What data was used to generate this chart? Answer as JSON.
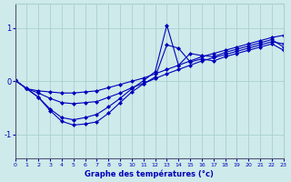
{
  "xlabel": "Graphe des températures (°c)",
  "bg_color": "#ceeaea",
  "grid_color": "#aacfcf",
  "line_color": "#0000bb",
  "x_min": 0,
  "x_max": 23,
  "y_min": -1.45,
  "y_max": 1.45,
  "yticks": [
    -1,
    0,
    1
  ],
  "xticks": [
    0,
    1,
    2,
    3,
    4,
    5,
    6,
    7,
    8,
    9,
    10,
    11,
    12,
    13,
    14,
    15,
    16,
    17,
    18,
    19,
    20,
    21,
    22,
    23
  ],
  "s1_x": [
    0,
    1,
    2,
    3,
    4,
    5,
    6,
    7,
    8,
    9,
    10,
    11,
    12,
    13,
    14,
    15,
    16,
    17,
    18,
    19,
    20,
    21,
    22,
    23
  ],
  "s1_y": [
    0.02,
    -0.14,
    -0.18,
    -0.2,
    -0.22,
    -0.22,
    -0.2,
    -0.18,
    -0.12,
    -0.06,
    0.0,
    0.06,
    0.14,
    0.22,
    0.3,
    0.38,
    0.46,
    0.52,
    0.58,
    0.64,
    0.7,
    0.76,
    0.82,
    0.86
  ],
  "s2_x": [
    0,
    1,
    2,
    3,
    4,
    5,
    6,
    7,
    8,
    9,
    10,
    11,
    12,
    13,
    14,
    15,
    16,
    17,
    18,
    19,
    20,
    21,
    22,
    23
  ],
  "s2_y": [
    0.02,
    -0.14,
    -0.22,
    -0.32,
    -0.4,
    -0.42,
    -0.4,
    -0.38,
    -0.3,
    -0.22,
    -0.12,
    -0.04,
    0.05,
    0.14,
    0.22,
    0.3,
    0.38,
    0.44,
    0.5,
    0.56,
    0.62,
    0.68,
    0.74,
    0.7
  ],
  "s3_x": [
    0,
    1,
    2,
    3,
    4,
    5,
    6,
    7,
    8,
    9,
    10,
    11,
    12,
    13,
    14,
    15,
    16,
    17,
    18,
    19,
    20,
    21,
    22,
    23
  ],
  "s3_y": [
    0.02,
    -0.14,
    -0.3,
    -0.52,
    -0.68,
    -0.72,
    -0.68,
    -0.62,
    -0.48,
    -0.32,
    -0.14,
    0.01,
    0.18,
    1.05,
    0.3,
    0.52,
    0.48,
    0.46,
    0.54,
    0.6,
    0.66,
    0.72,
    0.78,
    0.64
  ],
  "s4_x": [
    0,
    1,
    2,
    3,
    4,
    5,
    6,
    7,
    8,
    9,
    10,
    11,
    12,
    13,
    14,
    15,
    16,
    17,
    18,
    19,
    20,
    21,
    22,
    23
  ],
  "s4_y": [
    0.02,
    -0.14,
    -0.3,
    -0.55,
    -0.75,
    -0.82,
    -0.8,
    -0.76,
    -0.6,
    -0.4,
    -0.2,
    -0.05,
    0.08,
    0.68,
    0.62,
    0.36,
    0.42,
    0.38,
    0.46,
    0.52,
    0.58,
    0.64,
    0.7,
    0.58
  ]
}
